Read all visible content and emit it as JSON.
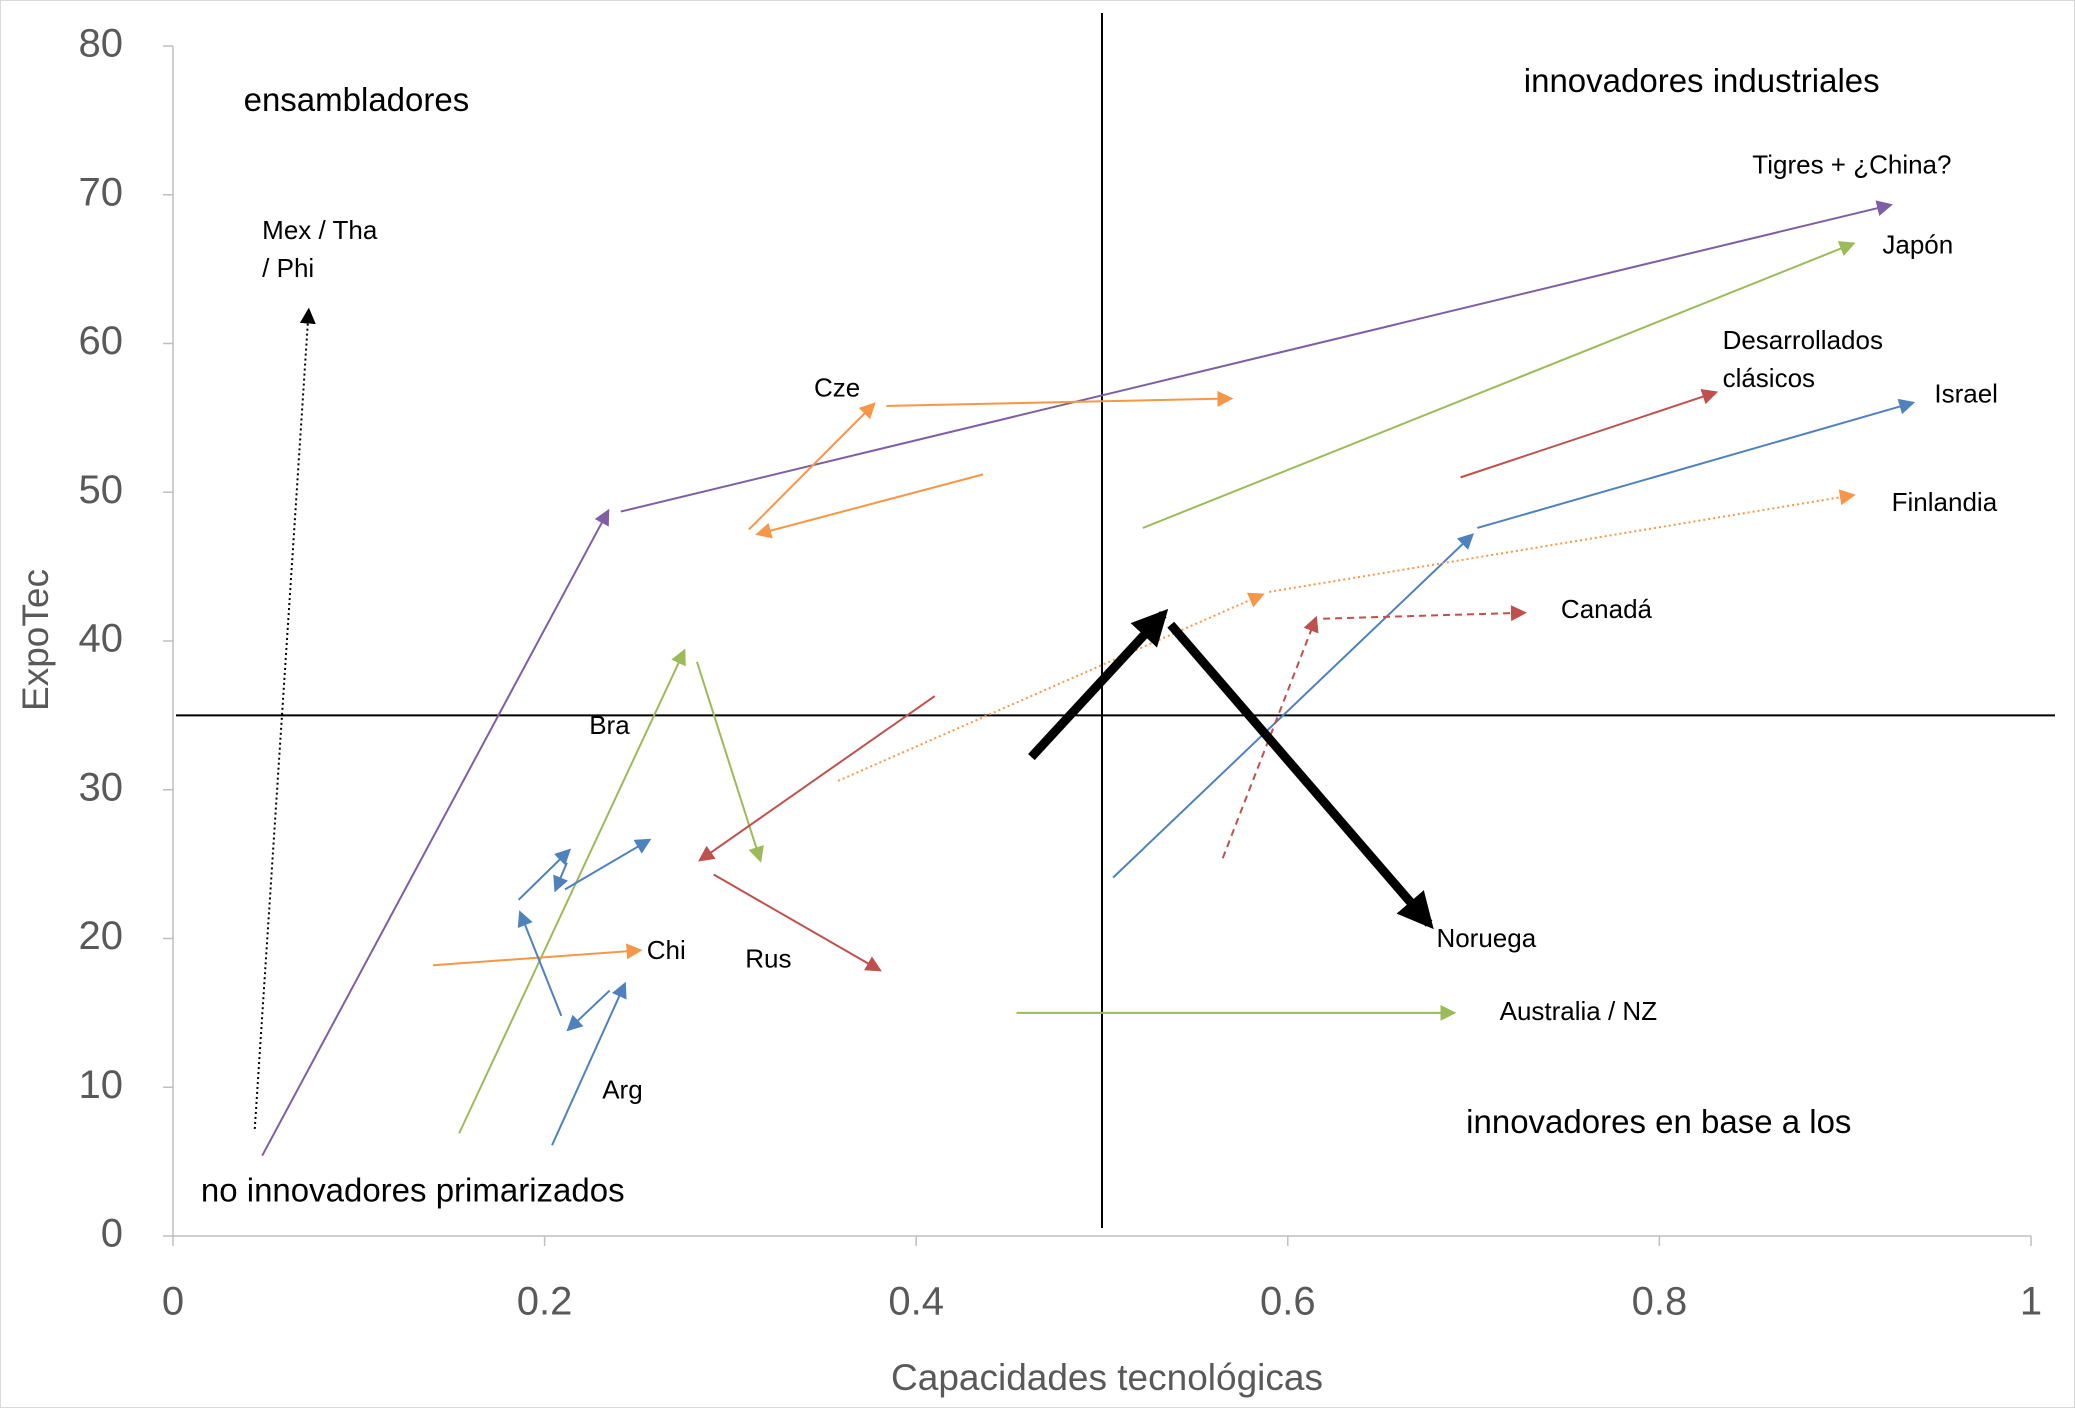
{
  "chart_data": {
    "type": "arrows",
    "xlabel": "Capacidades tecnológicas",
    "ylabel": "ExpoTec",
    "xlim": [
      0,
      1
    ],
    "ylim": [
      0,
      80
    ],
    "xticks": [
      0,
      0.2,
      0.4,
      0.6,
      0.8,
      1
    ],
    "yticks": [
      0,
      10,
      20,
      30,
      40,
      50,
      60,
      70,
      80
    ],
    "vline": 0.5,
    "hline": 35,
    "series": [
      {
        "color": "#7e5fa5",
        "style": "solid",
        "x": [
          0.048,
          0.234
        ],
        "values": [
          5.4,
          48.7
        ]
      },
      {
        "color": "#7e5fa5",
        "style": "solid",
        "x": [
          0.241,
          0.924
        ],
        "values": [
          48.7,
          69.3
        ]
      },
      {
        "color": "#000000",
        "style": "dotted",
        "x": [
          0.044,
          0.073
        ],
        "values": [
          7.2,
          62.2
        ]
      },
      {
        "color": "#9bbb59",
        "style": "solid",
        "x": [
          0.522,
          0.904
        ],
        "values": [
          47.6,
          66.7
        ]
      },
      {
        "color": "#c0504d",
        "style": "solid",
        "x": [
          0.693,
          0.83
        ],
        "values": [
          51.0,
          56.7
        ]
      },
      {
        "color": "#4f81bd",
        "style": "solid",
        "x": [
          0.702,
          0.936
        ],
        "values": [
          47.6,
          56.0
        ]
      },
      {
        "color": "#4f81bd",
        "style": "solid",
        "x": [
          0.506,
          0.699
        ],
        "values": [
          24.1,
          47.1
        ]
      },
      {
        "color": "#f79646",
        "style": "dotted",
        "x": [
          0.59,
          0.904
        ],
        "values": [
          43.3,
          49.8
        ]
      },
      {
        "color": "#f79646",
        "style": "dotted",
        "x": [
          0.358,
          0.586
        ],
        "values": [
          30.6,
          43.1
        ]
      },
      {
        "color": "#c0504d",
        "style": "dashed",
        "x": [
          0.565,
          0.615
        ],
        "values": [
          25.4,
          41.5
        ]
      },
      {
        "color": "#c0504d",
        "style": "dashed",
        "x": [
          0.619,
          0.727
        ],
        "values": [
          41.5,
          41.9
        ]
      },
      {
        "color": "#000000",
        "style": "thick",
        "x": [
          0.462,
          0.533
        ],
        "values": [
          32.2,
          41.8
        ]
      },
      {
        "color": "#000000",
        "style": "thick",
        "x": [
          0.537,
          0.676
        ],
        "values": [
          41.1,
          21.0
        ]
      },
      {
        "color": "#9bbb59",
        "style": "solid",
        "x": [
          0.454,
          0.689
        ],
        "values": [
          15.0,
          15.0
        ]
      },
      {
        "color": "#f79646",
        "style": "solid",
        "x": [
          0.31,
          0.377
        ],
        "values": [
          47.5,
          55.9
        ]
      },
      {
        "color": "#f79646",
        "style": "solid",
        "x": [
          0.384,
          0.569
        ],
        "values": [
          55.8,
          56.3
        ]
      },
      {
        "color": "#f79646",
        "style": "solid",
        "x": [
          0.436,
          0.315
        ],
        "values": [
          51.2,
          47.2
        ]
      },
      {
        "color": "#9bbb59",
        "style": "solid",
        "x": [
          0.154,
          0.275
        ],
        "values": [
          6.9,
          39.3
        ]
      },
      {
        "color": "#9bbb59",
        "style": "solid",
        "x": [
          0.282,
          0.316
        ],
        "values": [
          38.6,
          25.3
        ]
      },
      {
        "color": "#c0504d",
        "style": "solid",
        "x": [
          0.41,
          0.284
        ],
        "values": [
          36.3,
          25.3
        ]
      },
      {
        "color": "#c0504d",
        "style": "solid",
        "x": [
          0.291,
          0.38
        ],
        "values": [
          24.3,
          17.9
        ]
      },
      {
        "color": "#f79646",
        "style": "solid",
        "x": [
          0.14,
          0.251
        ],
        "values": [
          18.2,
          19.2
        ]
      },
      {
        "color": "#4f81bd",
        "style": "solid",
        "x": [
          0.204,
          0.243
        ],
        "values": [
          6.1,
          16.9
        ]
      },
      {
        "color": "#4f81bd",
        "style": "solid",
        "x": [
          0.235,
          0.213
        ],
        "values": [
          16.5,
          13.9
        ]
      },
      {
        "color": "#4f81bd",
        "style": "solid",
        "x": [
          0.209,
          0.187
        ],
        "values": [
          14.8,
          21.7
        ]
      },
      {
        "color": "#4f81bd",
        "style": "solid",
        "x": [
          0.186,
          0.213
        ],
        "values": [
          22.6,
          25.9
        ]
      },
      {
        "color": "#4f81bd",
        "style": "solid",
        "x": [
          0.212,
          0.206
        ],
        "values": [
          25.1,
          23.3
        ]
      },
      {
        "color": "#4f81bd",
        "style": "solid",
        "x": [
          0.211,
          0.256
        ],
        "values": [
          23.3,
          26.6
        ]
      }
    ],
    "annotations": [
      {
        "lines": [
          "ensambladores"
        ],
        "x": 0.038,
        "y": 76.2,
        "size": "quad"
      },
      {
        "lines": [
          "innovadores industriales"
        ],
        "x": 0.727,
        "y": 77.5,
        "size": "quad"
      },
      {
        "lines": [
          "innovadores en base a los"
        ],
        "x": 0.696,
        "y": 7.5,
        "size": "quad"
      },
      {
        "lines": [
          "no innovadores primarizados"
        ],
        "x": 0.015,
        "y": 2.9,
        "size": "quad"
      },
      {
        "lines": [
          "Tigres + ¿China?"
        ],
        "x": 0.85,
        "y": 71.9,
        "size": "note"
      },
      {
        "lines": [
          "Japón"
        ],
        "x": 0.92,
        "y": 66.5,
        "size": "note"
      },
      {
        "lines": [
          "Desarrollados",
          "clásicos"
        ],
        "x": 0.834,
        "y": 60.1,
        "size": "note"
      },
      {
        "lines": [
          "Israel"
        ],
        "x": 0.948,
        "y": 56.5,
        "size": "note"
      },
      {
        "lines": [
          "Finlandia"
        ],
        "x": 0.925,
        "y": 49.2,
        "size": "note"
      },
      {
        "lines": [
          "Canadá"
        ],
        "x": 0.747,
        "y": 42.0,
        "size": "note"
      },
      {
        "lines": [
          "Noruega"
        ],
        "x": 0.68,
        "y": 19.9,
        "size": "note"
      },
      {
        "lines": [
          "Australia /  NZ"
        ],
        "x": 0.714,
        "y": 15.0,
        "size": "note"
      },
      {
        "lines": [
          "Mex / Tha",
          "/ Phi"
        ],
        "x": 0.048,
        "y": 67.5,
        "size": "note"
      },
      {
        "lines": [
          "Cze"
        ],
        "x": 0.345,
        "y": 56.9,
        "size": "note"
      },
      {
        "lines": [
          "Bra"
        ],
        "x": 0.224,
        "y": 34.2,
        "size": "note"
      },
      {
        "lines": [
          "Chi"
        ],
        "x": 0.255,
        "y": 19.1,
        "size": "note"
      },
      {
        "lines": [
          "Rus"
        ],
        "x": 0.308,
        "y": 18.5,
        "size": "note"
      },
      {
        "lines": [
          "Arg"
        ],
        "x": 0.231,
        "y": 9.7,
        "size": "note"
      }
    ]
  }
}
